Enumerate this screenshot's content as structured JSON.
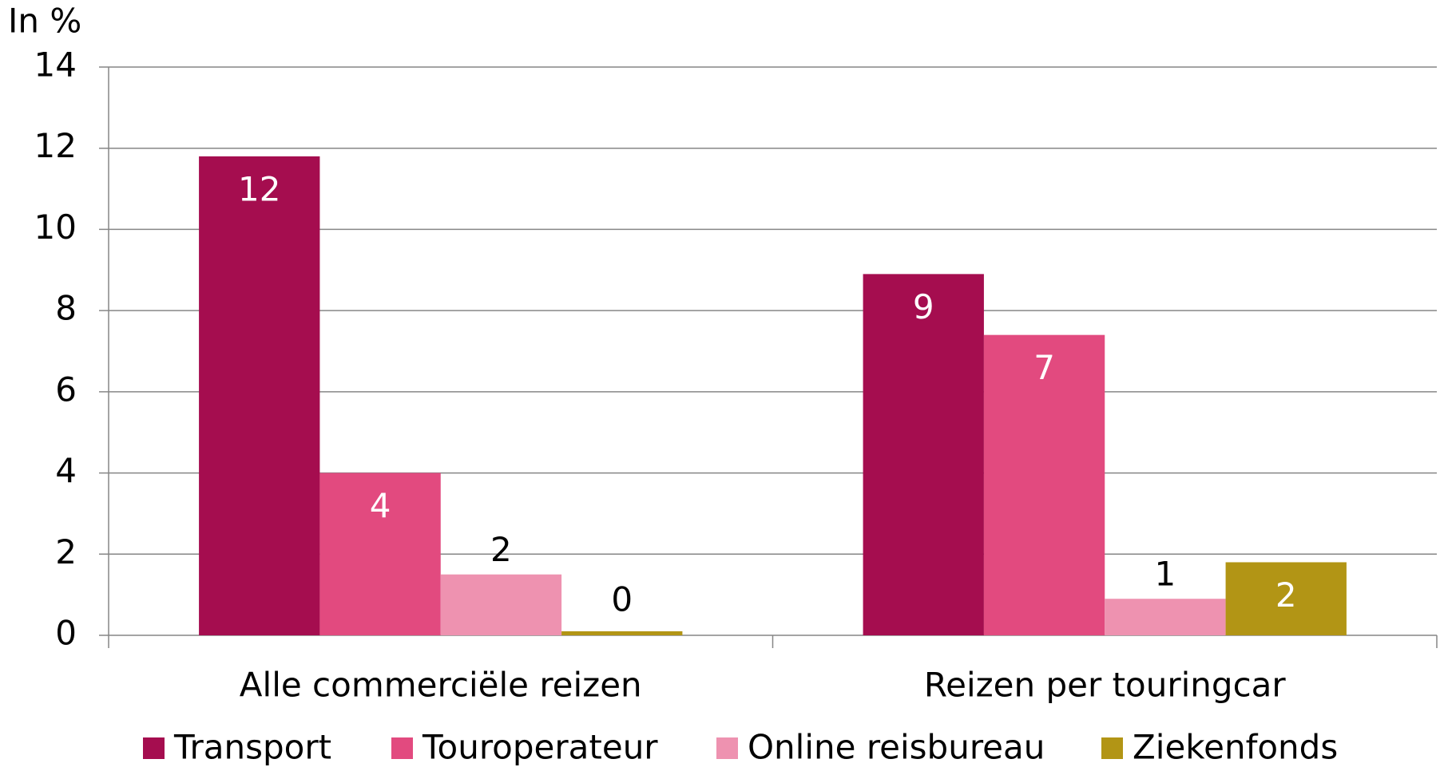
{
  "chart_data": {
    "type": "bar",
    "y_axis_label": "In %",
    "categories": [
      "Alle commerciële reizen",
      "Reizen per touringcar"
    ],
    "series": [
      {
        "name": "Transport",
        "color": "#a50d4f",
        "values": [
          11.8,
          8.9
        ],
        "value_labels": [
          "12",
          "9"
        ]
      },
      {
        "name": "Touroperateur",
        "color": "#e24a7f",
        "values": [
          4.0,
          7.4
        ],
        "value_labels": [
          "4",
          "7"
        ]
      },
      {
        "name": "Online reisbureau",
        "color": "#ee92b0",
        "values": [
          1.5,
          0.9
        ],
        "value_labels": [
          "2",
          "1"
        ]
      },
      {
        "name": "Ziekenfonds",
        "color": "#b29515",
        "values": [
          0.1,
          1.8
        ],
        "value_labels": [
          "0",
          "2"
        ]
      }
    ],
    "ylim": [
      0,
      14
    ],
    "yticks": [
      0,
      2,
      4,
      6,
      8,
      10,
      12,
      14
    ],
    "grid": true,
    "legend": "bottom"
  }
}
